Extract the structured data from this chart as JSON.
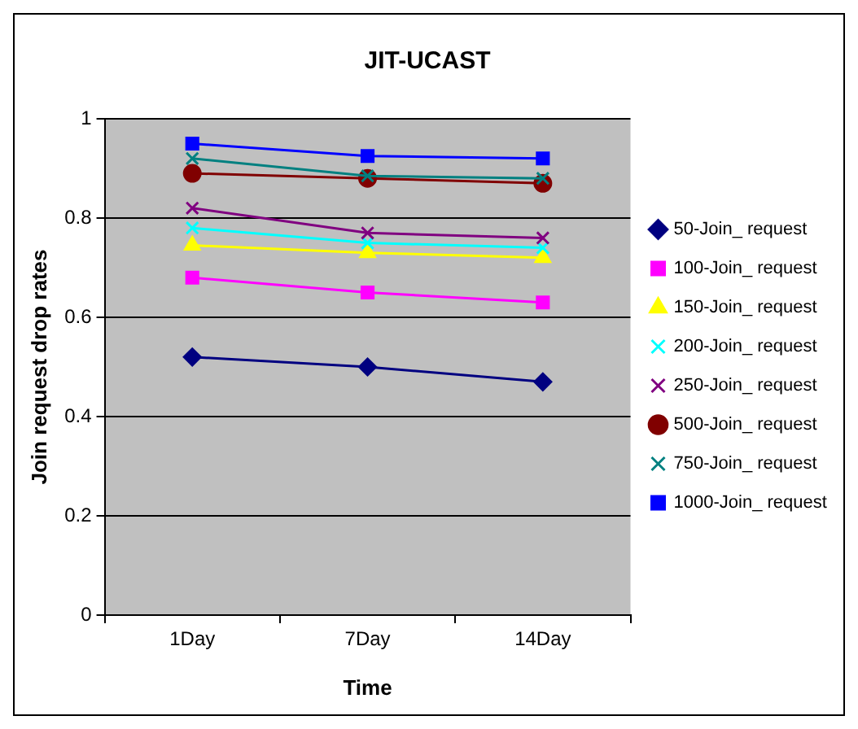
{
  "chart_data": {
    "type": "line",
    "title": "JIT-UCAST",
    "xlabel": "Time",
    "ylabel": "Join request drop rates",
    "categories": [
      "1Day",
      "7Day",
      "14Day"
    ],
    "ylim": [
      0,
      1
    ],
    "yticks": [
      0,
      0.2,
      0.4,
      0.6,
      0.8,
      1
    ],
    "grid": "y",
    "legend": "right",
    "line_style": "solid",
    "series": [
      {
        "name": "50-Join_ request",
        "color": "#000080",
        "marker": "diamond",
        "values": [
          0.52,
          0.5,
          0.47
        ]
      },
      {
        "name": "100-Join_ request",
        "color": "#ff00ff",
        "marker": "square",
        "values": [
          0.68,
          0.65,
          0.63
        ]
      },
      {
        "name": "150-Join_ request",
        "color": "#ffff00",
        "marker": "triangle",
        "values": [
          0.745,
          0.73,
          0.72
        ]
      },
      {
        "name": "200-Join_ request",
        "color": "#00ffff",
        "marker": "cross",
        "values": [
          0.78,
          0.75,
          0.74
        ]
      },
      {
        "name": "250-Join_ request",
        "color": "#800080",
        "marker": "cross",
        "values": [
          0.82,
          0.77,
          0.76
        ]
      },
      {
        "name": "500-Join_ request",
        "color": "#800000",
        "marker": "circle",
        "values": [
          0.89,
          0.88,
          0.87
        ]
      },
      {
        "name": "750-Join_ request",
        "color": "#008080",
        "marker": "cross",
        "values": [
          0.92,
          0.885,
          0.88
        ]
      },
      {
        "name": "1000-Join_ request",
        "color": "#0000ff",
        "marker": "square",
        "values": [
          0.95,
          0.925,
          0.92
        ]
      }
    ]
  }
}
